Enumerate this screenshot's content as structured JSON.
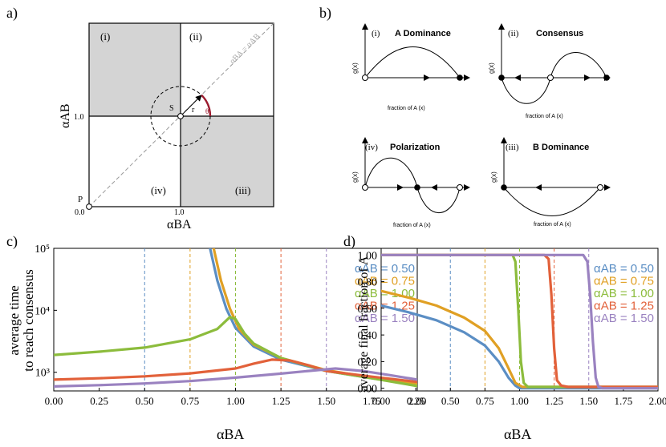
{
  "colors": {
    "blue": "#5b8ec4",
    "orange": "#e0a024",
    "green": "#8cbc3c",
    "red": "#e2613a",
    "purple": "#9a82c0",
    "gray": "#d4d4d4",
    "arc": "#9b1b2e"
  },
  "panel_a": {
    "label": "a)",
    "quadrants": [
      "(i)",
      "(ii)",
      "(iii)",
      "(iv)"
    ],
    "s_label": "S",
    "r_label": "r",
    "theta_label": "θ",
    "p_label": "P",
    "diag_label": "αBA = αAB",
    "tick_one_y": "1.0",
    "tick_zero": "0.0",
    "tick_one_x": "1.0",
    "ylabel": "αAB",
    "xlabel": "αBA"
  },
  "panel_b": {
    "label": "b)",
    "subplots": [
      {
        "num": "(i)",
        "title": "A Dominance",
        "ylab": "g(x)",
        "xlab": "fraction of A (x)"
      },
      {
        "num": "(ii)",
        "title": "Consensus",
        "ylab": "g(x)",
        "xlab": "fraction of A (x)"
      },
      {
        "num": "(iv)",
        "title": "Polarization",
        "ylab": "g(x)",
        "xlab": "fraction of A (x)"
      },
      {
        "num": "(iii)",
        "title": "B Dominance",
        "ylab": "g(x)",
        "xlab": "fraction of A (x)"
      }
    ]
  },
  "chart_data": [
    {
      "type": "line",
      "label": "c)",
      "title": "",
      "xlabel": "αBA",
      "ylabel_line1": "average time",
      "ylabel_line2": "to reach consensus",
      "yscale": "log",
      "xlim": [
        0,
        2
      ],
      "ylim": [
        500,
        100000
      ],
      "x_ticks": [
        "0.00",
        "0.25",
        "0.50",
        "0.75",
        "1.00",
        "1.25",
        "1.50",
        "1.75",
        "2.00"
      ],
      "y_ticks": [
        "10³",
        "10⁴",
        "10⁵"
      ],
      "dashed_lines_x": [
        0.5,
        0.75,
        1.0,
        1.25,
        1.5
      ],
      "legend": [
        "αAB = 0.50",
        "αAB = 0.75",
        "αAB = 1.00",
        "αAB = 1.25",
        "αAB = 1.50"
      ],
      "series": [
        {
          "name": "αAB = 0.50",
          "color": "blue",
          "x": [
            0.86,
            0.9,
            0.95,
            1.0,
            1.1,
            1.25,
            1.5,
            1.75,
            2.0
          ],
          "values": [
            100000,
            30000,
            10500,
            5200,
            2600,
            1600,
            1050,
            800,
            640
          ]
        },
        {
          "name": "αAB = 0.75",
          "color": "orange",
          "x": [
            0.88,
            0.92,
            0.97,
            1.02,
            1.1,
            1.25,
            1.5,
            1.75,
            2.0
          ],
          "values": [
            100000,
            30000,
            10500,
            5000,
            2800,
            1700,
            1080,
            820,
            660
          ]
        },
        {
          "name": "αAB = 1.00",
          "color": "green",
          "x": [
            0,
            0.25,
            0.5,
            0.75,
            0.9,
            0.97,
            1.0,
            1.05,
            1.1,
            1.25,
            1.5,
            1.75,
            2.0
          ],
          "values": [
            1900,
            2150,
            2500,
            3400,
            5000,
            7800,
            7200,
            4200,
            2900,
            1700,
            1050,
            800,
            600
          ]
        },
        {
          "name": "αAB = 1.25",
          "color": "red",
          "x": [
            0,
            0.25,
            0.5,
            0.75,
            1.0,
            1.1,
            1.2,
            1.3,
            1.4,
            1.5,
            1.75,
            2.0
          ],
          "values": [
            760,
            800,
            860,
            960,
            1150,
            1380,
            1600,
            1550,
            1300,
            1050,
            850,
            700
          ]
        },
        {
          "name": "αAB = 1.50",
          "color": "purple",
          "x": [
            0,
            0.25,
            0.5,
            0.75,
            1.0,
            1.25,
            1.4,
            1.55,
            1.7,
            1.85,
            2.0
          ],
          "values": [
            590,
            620,
            660,
            720,
            820,
            950,
            1050,
            1150,
            1050,
            900,
            760
          ]
        }
      ]
    },
    {
      "type": "line",
      "label": "d)",
      "title": "",
      "xlabel": "αBA",
      "ylabel": "average final fraction of A",
      "xlim": [
        0,
        2
      ],
      "ylim": [
        -0.02,
        1.05
      ],
      "x_ticks": [
        "0.00",
        "0.25",
        "0.50",
        "0.75",
        "1.00",
        "1.25",
        "1.50",
        "1.75",
        "2.00"
      ],
      "y_ticks": [
        "0.00",
        "0.20",
        "0.40",
        "0.60",
        "0.80",
        "1.00"
      ],
      "dashed_lines_x": [
        0.5,
        0.75,
        1.0,
        1.25,
        1.5
      ],
      "legend": [
        "αAB = 0.50",
        "αAB = 0.75",
        "αAB = 1.00",
        "αAB = 1.25",
        "αAB = 1.50"
      ],
      "series": [
        {
          "name": "αAB = 0.50",
          "color": "blue",
          "x": [
            0,
            0.2,
            0.4,
            0.6,
            0.75,
            0.85,
            0.92,
            0.97,
            1.0,
            1.1,
            1.5,
            2.0
          ],
          "values": [
            0.62,
            0.57,
            0.51,
            0.42,
            0.32,
            0.2,
            0.08,
            0.02,
            0.0,
            0.0,
            0.0,
            0.0
          ]
        },
        {
          "name": "αAB = 0.75",
          "color": "orange",
          "x": [
            0,
            0.2,
            0.4,
            0.6,
            0.75,
            0.85,
            0.92,
            0.97,
            1.02,
            1.1,
            1.5,
            2.0
          ],
          "values": [
            0.73,
            0.68,
            0.62,
            0.53,
            0.43,
            0.3,
            0.15,
            0.04,
            0.01,
            0.01,
            0.01,
            0.01
          ]
        },
        {
          "name": "αAB = 1.00",
          "color": "green",
          "x": [
            0,
            0.9,
            0.95,
            0.97,
            0.99,
            1.01,
            1.03,
            1.06,
            1.1,
            1.5,
            2.0
          ],
          "values": [
            1.0,
            1.0,
            1.0,
            0.95,
            0.6,
            0.2,
            0.04,
            0.01,
            0.01,
            0.01,
            0.01
          ]
        },
        {
          "name": "αAB = 1.25",
          "color": "red",
          "x": [
            0,
            1.18,
            1.21,
            1.23,
            1.25,
            1.27,
            1.3,
            1.35,
            1.5,
            2.0
          ],
          "values": [
            1.0,
            1.0,
            0.97,
            0.7,
            0.3,
            0.06,
            0.02,
            0.01,
            0.01,
            0.01
          ]
        },
        {
          "name": "αAB = 1.50",
          "color": "purple",
          "x": [
            0,
            1.46,
            1.49,
            1.51,
            1.53,
            1.55,
            1.57,
            1.6,
            2.0
          ],
          "values": [
            1.0,
            1.0,
            0.95,
            0.7,
            0.35,
            0.08,
            0.01,
            0.0,
            0.0
          ]
        }
      ]
    }
  ]
}
